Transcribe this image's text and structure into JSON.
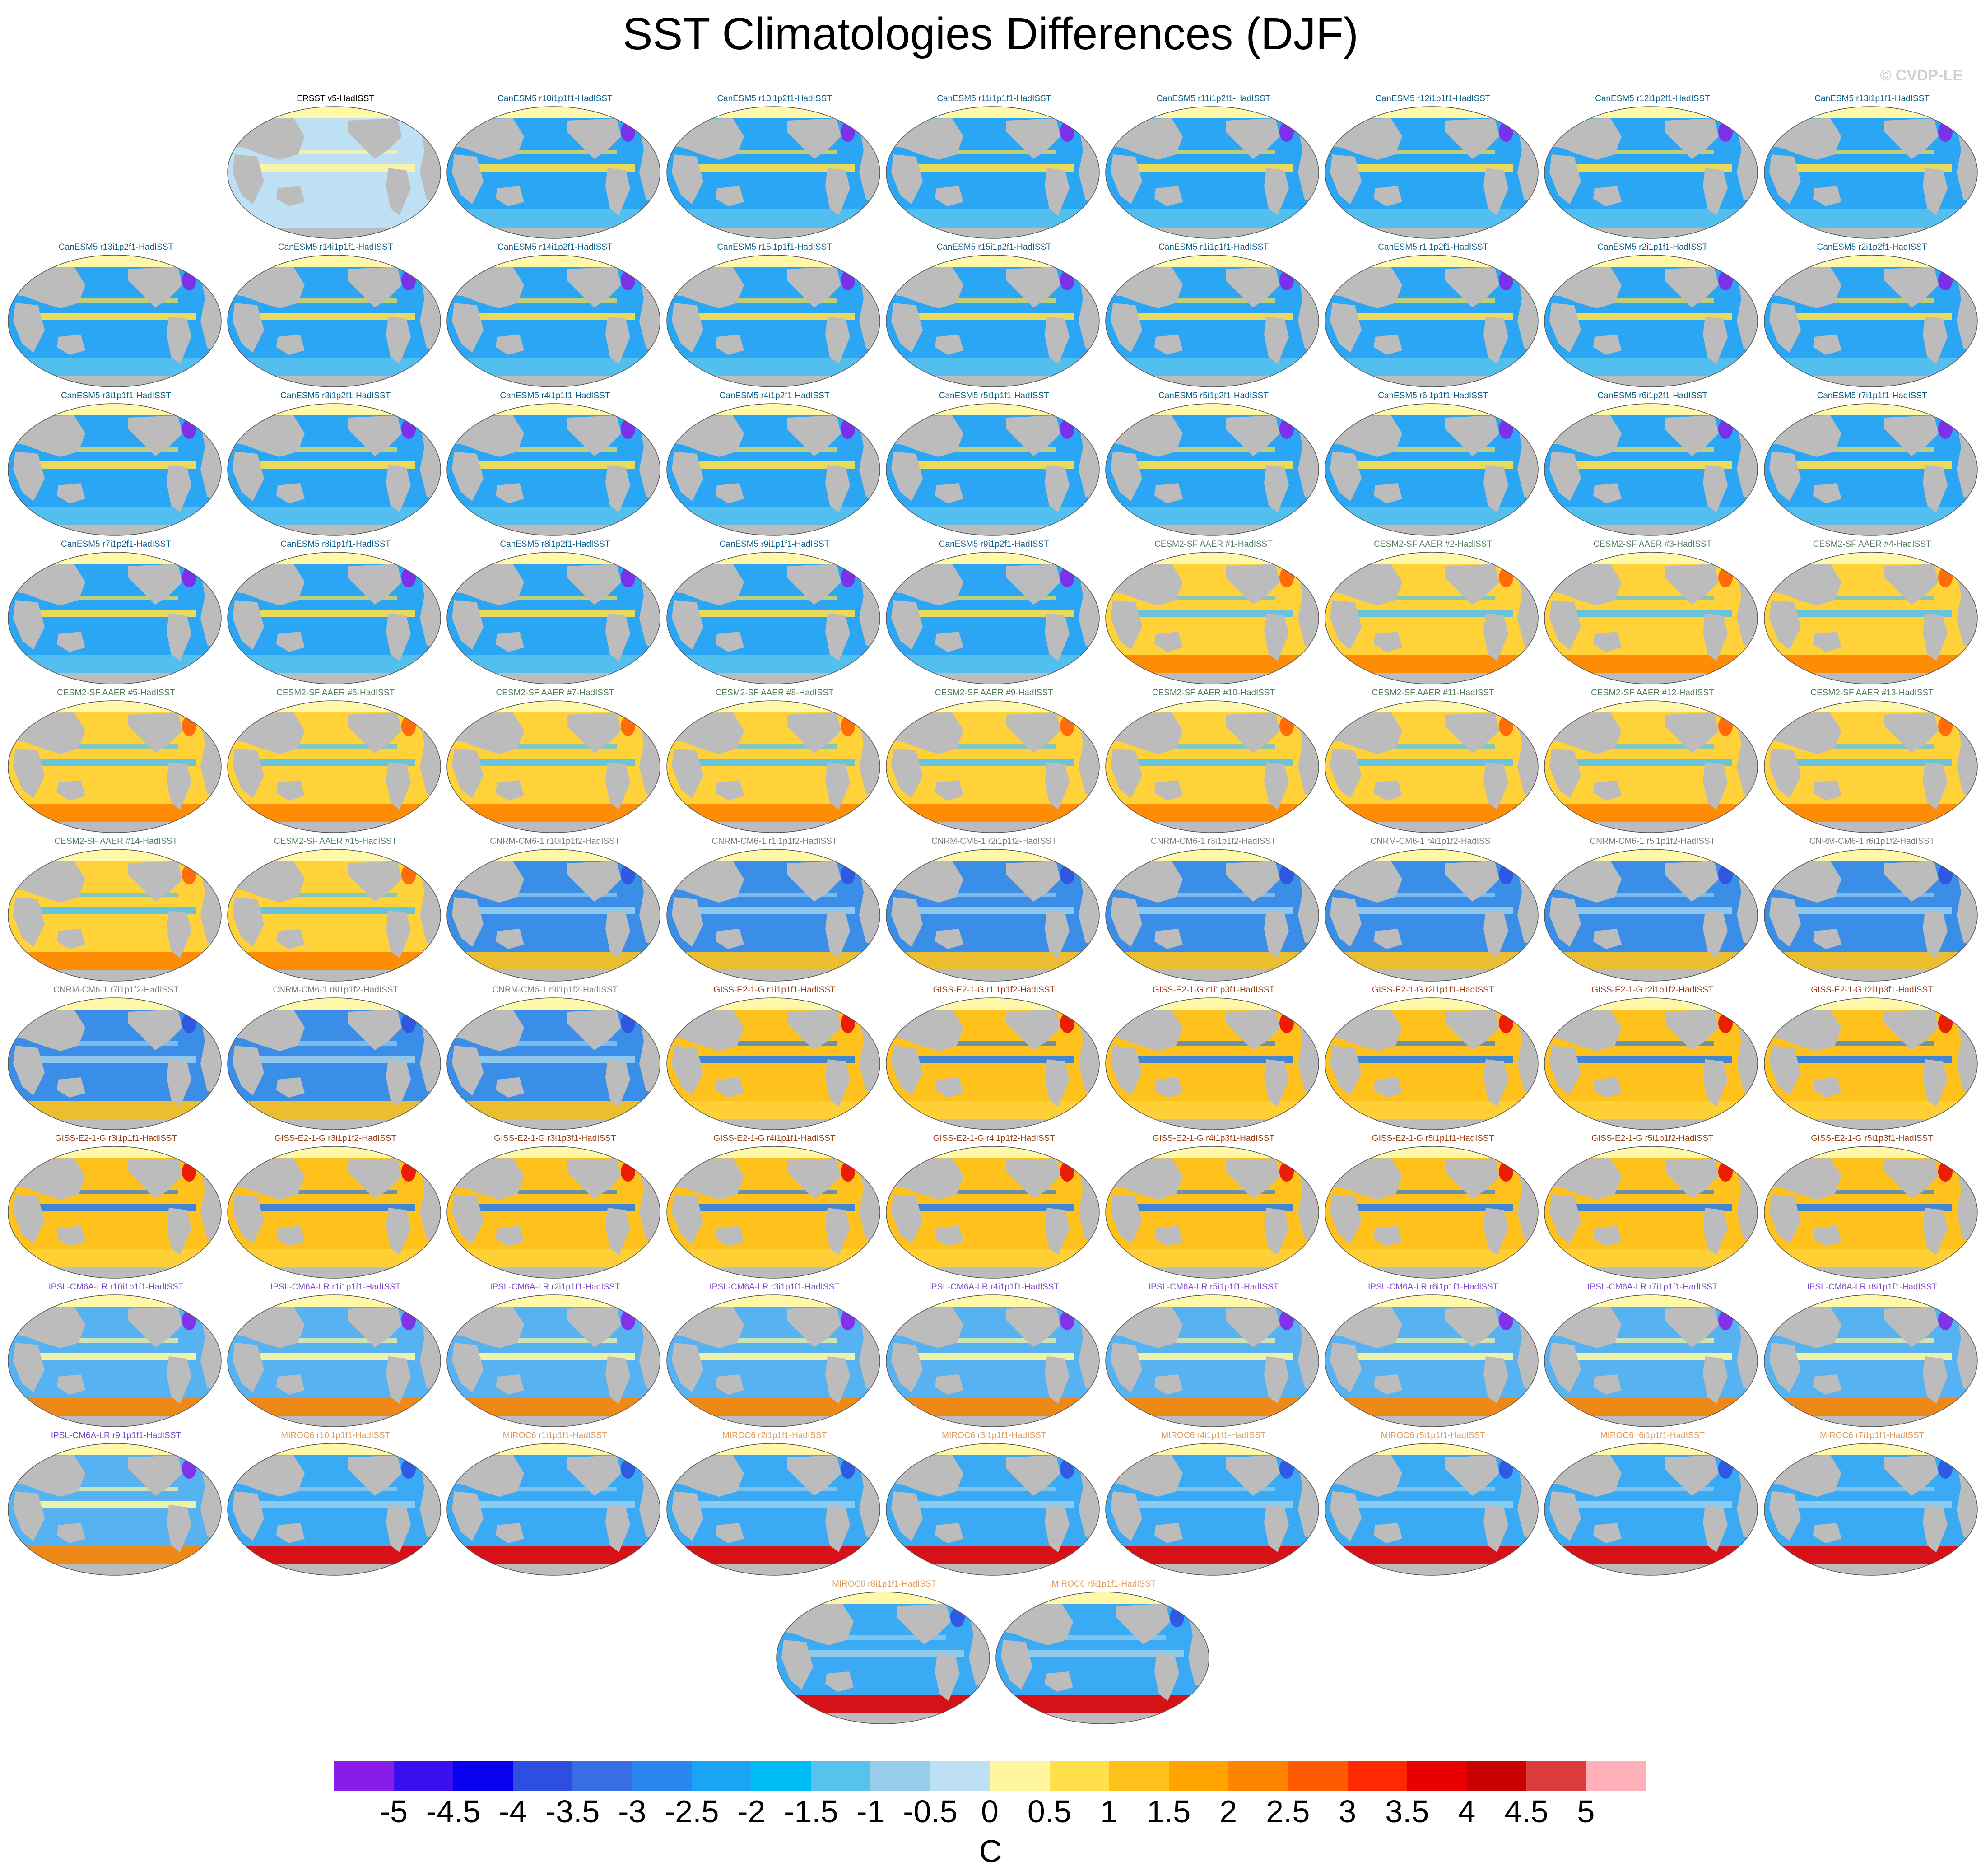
{
  "title": "SST Climatologies Differences (DJF)",
  "watermark": "© CVDP-LE",
  "colors": {
    "land": "#bcbcbc",
    "sea_ice": "#fff8a8",
    "title_colors": {
      "obs": "#000000",
      "CanESM5": "#0b5f8a",
      "CESM2": "#4f7f5a",
      "CNRM": "#7a7a7a",
      "GISS": "#9a3a10",
      "IPSL": "#7b48c8",
      "MIROC": "#e09a5a"
    }
  },
  "chart_data": {
    "type": "heatmap",
    "description_units": "C",
    "colorbar": {
      "labels": [
        "-5",
        "-4.5",
        "-4",
        "-3.5",
        "-3",
        "-2.5",
        "-2",
        "-1.5",
        "-1",
        "-0.5",
        "0",
        "0.5",
        "1",
        "1.5",
        "2",
        "2.5",
        "3",
        "3.5",
        "4",
        "4.5",
        "5"
      ],
      "colors": [
        "#8a1ce8",
        "#3a10f0",
        "#0a00f0",
        "#2e4ee0",
        "#3a6ee6",
        "#2a86f0",
        "#1aa4f6",
        "#00bcf6",
        "#56c2ee",
        "#98cdeb",
        "#bde0f4",
        "#fff7a0",
        "#ffe04a",
        "#ffc21c",
        "#ffa400",
        "#ff8400",
        "#ff5a00",
        "#ff2800",
        "#e80000",
        "#c80000",
        "#dc3c3c",
        "#ffb0b8"
      ],
      "unit": "C"
    },
    "panels": [
      {
        "row": 0,
        "col": 1,
        "label": "ERSST v5-HadISST",
        "group": "obs"
      },
      {
        "row": 0,
        "col": 2,
        "label": "CanESM5 r10i1p1f1-HadISST",
        "group": "CanESM5"
      },
      {
        "row": 0,
        "col": 3,
        "label": "CanESM5 r10i1p2f1-HadISST",
        "group": "CanESM5"
      },
      {
        "row": 0,
        "col": 4,
        "label": "CanESM5 r11i1p1f1-HadISST",
        "group": "CanESM5"
      },
      {
        "row": 0,
        "col": 5,
        "label": "CanESM5 r11i1p2f1-HadISST",
        "group": "CanESM5"
      },
      {
        "row": 0,
        "col": 6,
        "label": "CanESM5 r12i1p1f1-HadISST",
        "group": "CanESM5"
      },
      {
        "row": 0,
        "col": 7,
        "label": "CanESM5 r12i1p2f1-HadISST",
        "group": "CanESM5"
      },
      {
        "row": 0,
        "col": 8,
        "label": "CanESM5 r13i1p1f1-HadISST",
        "group": "CanESM5"
      },
      {
        "row": 1,
        "col": 0,
        "label": "CanESM5 r13i1p2f1-HadISST",
        "group": "CanESM5"
      },
      {
        "row": 1,
        "col": 1,
        "label": "CanESM5 r14i1p1f1-HadISST",
        "group": "CanESM5"
      },
      {
        "row": 1,
        "col": 2,
        "label": "CanESM5 r14i1p2f1-HadISST",
        "group": "CanESM5"
      },
      {
        "row": 1,
        "col": 3,
        "label": "CanESM5 r15i1p1f1-HadISST",
        "group": "CanESM5"
      },
      {
        "row": 1,
        "col": 4,
        "label": "CanESM5 r15i1p2f1-HadISST",
        "group": "CanESM5"
      },
      {
        "row": 1,
        "col": 5,
        "label": "CanESM5 r1i1p1f1-HadISST",
        "group": "CanESM5"
      },
      {
        "row": 1,
        "col": 6,
        "label": "CanESM5 r1i1p2f1-HadISST",
        "group": "CanESM5"
      },
      {
        "row": 1,
        "col": 7,
        "label": "CanESM5 r2i1p1f1-HadISST",
        "group": "CanESM5"
      },
      {
        "row": 1,
        "col": 8,
        "label": "CanESM5 r2i1p2f1-HadISST",
        "group": "CanESM5"
      },
      {
        "row": 2,
        "col": 0,
        "label": "CanESM5 r3i1p1f1-HadISST",
        "group": "CanESM5"
      },
      {
        "row": 2,
        "col": 1,
        "label": "CanESM5 r3i1p2f1-HadISST",
        "group": "CanESM5"
      },
      {
        "row": 2,
        "col": 2,
        "label": "CanESM5 r4i1p1f1-HadISST",
        "group": "CanESM5"
      },
      {
        "row": 2,
        "col": 3,
        "label": "CanESM5 r4i1p2f1-HadISST",
        "group": "CanESM5"
      },
      {
        "row": 2,
        "col": 4,
        "label": "CanESM5 r5i1p1f1-HadISST",
        "group": "CanESM5"
      },
      {
        "row": 2,
        "col": 5,
        "label": "CanESM5 r5i1p2f1-HadISST",
        "group": "CanESM5"
      },
      {
        "row": 2,
        "col": 6,
        "label": "CanESM5 r6i1p1f1-HadISST",
        "group": "CanESM5"
      },
      {
        "row": 2,
        "col": 7,
        "label": "CanESM5 r6i1p2f1-HadISST",
        "group": "CanESM5"
      },
      {
        "row": 2,
        "col": 8,
        "label": "CanESM5 r7i1p1f1-HadISST",
        "group": "CanESM5"
      },
      {
        "row": 3,
        "col": 0,
        "label": "CanESM5 r7i1p2f1-HadISST",
        "group": "CanESM5"
      },
      {
        "row": 3,
        "col": 1,
        "label": "CanESM5 r8i1p1f1-HadISST",
        "group": "CanESM5"
      },
      {
        "row": 3,
        "col": 2,
        "label": "CanESM5 r8i1p2f1-HadISST",
        "group": "CanESM5"
      },
      {
        "row": 3,
        "col": 3,
        "label": "CanESM5 r9i1p1f1-HadISST",
        "group": "CanESM5"
      },
      {
        "row": 3,
        "col": 4,
        "label": "CanESM5 r9i1p2f1-HadISST",
        "group": "CanESM5"
      },
      {
        "row": 3,
        "col": 5,
        "label": "CESM2-SF AAER #1-HadISST",
        "group": "CESM2"
      },
      {
        "row": 3,
        "col": 6,
        "label": "CESM2-SF AAER #2-HadISST",
        "group": "CESM2"
      },
      {
        "row": 3,
        "col": 7,
        "label": "CESM2-SF AAER #3-HadISST",
        "group": "CESM2"
      },
      {
        "row": 3,
        "col": 8,
        "label": "CESM2-SF AAER #4-HadISST",
        "group": "CESM2"
      },
      {
        "row": 4,
        "col": 0,
        "label": "CESM2-SF AAER #5-HadISST",
        "group": "CESM2"
      },
      {
        "row": 4,
        "col": 1,
        "label": "CESM2-SF AAER #6-HadISST",
        "group": "CESM2"
      },
      {
        "row": 4,
        "col": 2,
        "label": "CESM2-SF AAER #7-HadISST",
        "group": "CESM2"
      },
      {
        "row": 4,
        "col": 3,
        "label": "CESM2-SF AAER #8-HadISST",
        "group": "CESM2"
      },
      {
        "row": 4,
        "col": 4,
        "label": "CESM2-SF AAER #9-HadISST",
        "group": "CESM2"
      },
      {
        "row": 4,
        "col": 5,
        "label": "CESM2-SF AAER #10-HadISST",
        "group": "CESM2"
      },
      {
        "row": 4,
        "col": 6,
        "label": "CESM2-SF AAER #11-HadISST",
        "group": "CESM2"
      },
      {
        "row": 4,
        "col": 7,
        "label": "CESM2-SF AAER #12-HadISST",
        "group": "CESM2"
      },
      {
        "row": 4,
        "col": 8,
        "label": "CESM2-SF AAER #13-HadISST",
        "group": "CESM2"
      },
      {
        "row": 5,
        "col": 0,
        "label": "CESM2-SF AAER #14-HadISST",
        "group": "CESM2"
      },
      {
        "row": 5,
        "col": 1,
        "label": "CESM2-SF AAER #15-HadISST",
        "group": "CESM2"
      },
      {
        "row": 5,
        "col": 2,
        "label": "CNRM-CM6-1 r10i1p1f2-HadISST",
        "group": "CNRM"
      },
      {
        "row": 5,
        "col": 3,
        "label": "CNRM-CM6-1 r1i1p1f2-HadISST",
        "group": "CNRM"
      },
      {
        "row": 5,
        "col": 4,
        "label": "CNRM-CM6-1 r2i1p1f2-HadISST",
        "group": "CNRM"
      },
      {
        "row": 5,
        "col": 5,
        "label": "CNRM-CM6-1 r3i1p1f2-HadISST",
        "group": "CNRM"
      },
      {
        "row": 5,
        "col": 6,
        "label": "CNRM-CM6-1 r4i1p1f2-HadISST",
        "group": "CNRM"
      },
      {
        "row": 5,
        "col": 7,
        "label": "CNRM-CM6-1 r5i1p1f2-HadISST",
        "group": "CNRM"
      },
      {
        "row": 5,
        "col": 8,
        "label": "CNRM-CM6-1 r6i1p1f2-HadISST",
        "group": "CNRM"
      },
      {
        "row": 6,
        "col": 0,
        "label": "CNRM-CM6-1 r7i1p1f2-HadISST",
        "group": "CNRM"
      },
      {
        "row": 6,
        "col": 1,
        "label": "CNRM-CM6-1 r8i1p1f2-HadISST",
        "group": "CNRM"
      },
      {
        "row": 6,
        "col": 2,
        "label": "CNRM-CM6-1 r9i1p1f2-HadISST",
        "group": "CNRM"
      },
      {
        "row": 6,
        "col": 3,
        "label": "GISS-E2-1-G r1i1p1f1-HadISST",
        "group": "GISS"
      },
      {
        "row": 6,
        "col": 4,
        "label": "GISS-E2-1-G r1i1p1f2-HadISST",
        "group": "GISS"
      },
      {
        "row": 6,
        "col": 5,
        "label": "GISS-E2-1-G r1i1p3f1-HadISST",
        "group": "GISS"
      },
      {
        "row": 6,
        "col": 6,
        "label": "GISS-E2-1-G r2i1p1f1-HadISST",
        "group": "GISS"
      },
      {
        "row": 6,
        "col": 7,
        "label": "GISS-E2-1-G r2i1p1f2-HadISST",
        "group": "GISS"
      },
      {
        "row": 6,
        "col": 8,
        "label": "GISS-E2-1-G r2i1p3f1-HadISST",
        "group": "GISS"
      },
      {
        "row": 7,
        "col": 0,
        "label": "GISS-E2-1-G r3i1p1f1-HadISST",
        "group": "GISS"
      },
      {
        "row": 7,
        "col": 1,
        "label": "GISS-E2-1-G r3i1p1f2-HadISST",
        "group": "GISS"
      },
      {
        "row": 7,
        "col": 2,
        "label": "GISS-E2-1-G r3i1p3f1-HadISST",
        "group": "GISS"
      },
      {
        "row": 7,
        "col": 3,
        "label": "GISS-E2-1-G r4i1p1f1-HadISST",
        "group": "GISS"
      },
      {
        "row": 7,
        "col": 4,
        "label": "GISS-E2-1-G r4i1p1f2-HadISST",
        "group": "GISS"
      },
      {
        "row": 7,
        "col": 5,
        "label": "GISS-E2-1-G r4i1p3f1-HadISST",
        "group": "GISS"
      },
      {
        "row": 7,
        "col": 6,
        "label": "GISS-E2-1-G r5i1p1f1-HadISST",
        "group": "GISS"
      },
      {
        "row": 7,
        "col": 7,
        "label": "GISS-E2-1-G r5i1p1f2-HadISST",
        "group": "GISS"
      },
      {
        "row": 7,
        "col": 8,
        "label": "GISS-E2-1-G r5i1p3f1-HadISST",
        "group": "GISS"
      },
      {
        "row": 8,
        "col": 0,
        "label": "IPSL-CM6A-LR r10i1p1f1-HadISST",
        "group": "IPSL"
      },
      {
        "row": 8,
        "col": 1,
        "label": "IPSL-CM6A-LR r1i1p1f1-HadISST",
        "group": "IPSL"
      },
      {
        "row": 8,
        "col": 2,
        "label": "IPSL-CM6A-LR r2i1p1f1-HadISST",
        "group": "IPSL"
      },
      {
        "row": 8,
        "col": 3,
        "label": "IPSL-CM6A-LR r3i1p1f1-HadISST",
        "group": "IPSL"
      },
      {
        "row": 8,
        "col": 4,
        "label": "IPSL-CM6A-LR r4i1p1f1-HadISST",
        "group": "IPSL"
      },
      {
        "row": 8,
        "col": 5,
        "label": "IPSL-CM6A-LR r5i1p1f1-HadISST",
        "group": "IPSL"
      },
      {
        "row": 8,
        "col": 6,
        "label": "IPSL-CM6A-LR r6i1p1f1-HadISST",
        "group": "IPSL"
      },
      {
        "row": 8,
        "col": 7,
        "label": "IPSL-CM6A-LR r7i1p1f1-HadISST",
        "group": "IPSL"
      },
      {
        "row": 8,
        "col": 8,
        "label": "IPSL-CM6A-LR r8i1p1f1-HadISST",
        "group": "IPSL"
      },
      {
        "row": 9,
        "col": 0,
        "label": "IPSL-CM6A-LR r9i1p1f1-HadISST",
        "group": "IPSL"
      },
      {
        "row": 9,
        "col": 1,
        "label": "MIROC6 r10i1p1f1-HadISST",
        "group": "MIROC"
      },
      {
        "row": 9,
        "col": 2,
        "label": "MIROC6 r1i1p1f1-HadISST",
        "group": "MIROC"
      },
      {
        "row": 9,
        "col": 3,
        "label": "MIROC6 r2i1p1f1-HadISST",
        "group": "MIROC"
      },
      {
        "row": 9,
        "col": 4,
        "label": "MIROC6 r3i1p1f1-HadISST",
        "group": "MIROC"
      },
      {
        "row": 9,
        "col": 5,
        "label": "MIROC6 r4i1p1f1-HadISST",
        "group": "MIROC"
      },
      {
        "row": 9,
        "col": 6,
        "label": "MIROC6 r5i1p1f1-HadISST",
        "group": "MIROC"
      },
      {
        "row": 9,
        "col": 7,
        "label": "MIROC6 r6i1p1f1-HadISST",
        "group": "MIROC"
      },
      {
        "row": 9,
        "col": 8,
        "label": "MIROC6 r7i1p1f1-HadISST",
        "group": "MIROC"
      },
      {
        "row": 10,
        "col": 3.5,
        "label": "MIROC6 r8i1p1f1-HadISST",
        "group": "MIROC"
      },
      {
        "row": 10,
        "col": 4.5,
        "label": "MIROC6 r9i1p1f1-HadISST",
        "group": "MIROC"
      }
    ]
  }
}
